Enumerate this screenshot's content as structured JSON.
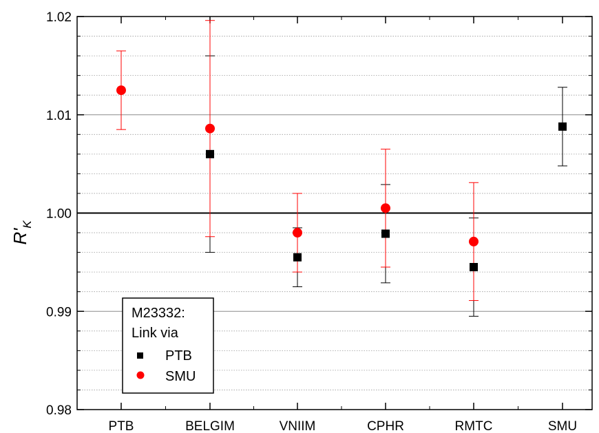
{
  "chart_data": {
    "type": "scatter",
    "categories": [
      "PTB",
      "BELGIM",
      "VNIIM",
      "CPHR",
      "RMTC",
      "SMU"
    ],
    "ylabel_main": "R'",
    "ylabel_sub": "K",
    "xlabel": "",
    "ylim": [
      0.98,
      1.02
    ],
    "yticks": [
      "0.98",
      "0.99",
      "1.00",
      "1.01",
      "1.02"
    ],
    "reference_line": 1.0,
    "grid": true,
    "legend": {
      "placement": "bottom-left",
      "title_line1": "M23332:",
      "title_line2": "Link via"
    },
    "series": [
      {
        "name": "PTB",
        "marker": "square",
        "color": "#000000",
        "points": [
          {
            "category": "BELGIM",
            "value": 1.006,
            "err": 0.01
          },
          {
            "category": "VNIIM",
            "value": 0.9955,
            "err": 0.003
          },
          {
            "category": "CPHR",
            "value": 0.9979,
            "err": 0.005
          },
          {
            "category": "RMTC",
            "value": 0.9945,
            "err": 0.005
          },
          {
            "category": "SMU",
            "value": 1.0088,
            "err": 0.004
          }
        ]
      },
      {
        "name": "SMU",
        "marker": "circle",
        "color": "#ff0000",
        "points": [
          {
            "category": "PTB",
            "value": 1.0125,
            "err": 0.004
          },
          {
            "category": "BELGIM",
            "value": 1.0086,
            "err": 0.011
          },
          {
            "category": "VNIIM",
            "value": 0.998,
            "err": 0.004
          },
          {
            "category": "CPHR",
            "value": 1.0005,
            "err": 0.006
          },
          {
            "category": "RMTC",
            "value": 0.9971,
            "err": 0.006
          }
        ]
      }
    ]
  }
}
